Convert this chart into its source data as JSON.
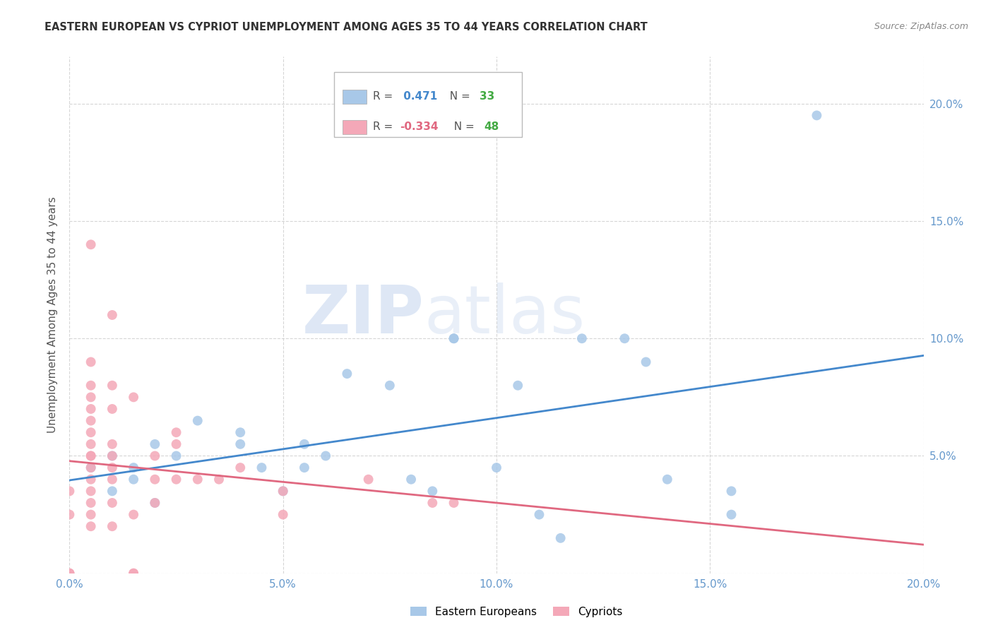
{
  "title": "EASTERN EUROPEAN VS CYPRIOT UNEMPLOYMENT AMONG AGES 35 TO 44 YEARS CORRELATION CHART",
  "source": "Source: ZipAtlas.com",
  "ylabel": "Unemployment Among Ages 35 to 44 years",
  "xlim": [
    0,
    0.2
  ],
  "ylim": [
    0,
    0.22
  ],
  "xticks": [
    0.0,
    0.05,
    0.1,
    0.15,
    0.2
  ],
  "yticks": [
    0.0,
    0.05,
    0.1,
    0.15,
    0.2
  ],
  "xticklabels": [
    "0.0%",
    "5.0%",
    "10.0%",
    "15.0%",
    "20.0%"
  ],
  "yticklabels_right": [
    "",
    "5.0%",
    "10.0%",
    "15.0%",
    "20.0%"
  ],
  "eastern_color": "#a8c8e8",
  "cypriot_color": "#f4a8b8",
  "trendline_eastern_color": "#4488cc",
  "trendline_cypriot_color": "#e06880",
  "R_eastern": 0.471,
  "N_eastern": 33,
  "R_cypriot": -0.334,
  "N_cypriot": 48,
  "eastern_x": [
    0.005,
    0.01,
    0.01,
    0.015,
    0.015,
    0.02,
    0.02,
    0.025,
    0.03,
    0.04,
    0.04,
    0.045,
    0.05,
    0.055,
    0.055,
    0.06,
    0.065,
    0.075,
    0.08,
    0.085,
    0.09,
    0.09,
    0.1,
    0.105,
    0.11,
    0.115,
    0.13,
    0.135,
    0.14,
    0.155,
    0.175,
    0.155,
    0.12
  ],
  "eastern_y": [
    0.045,
    0.05,
    0.035,
    0.045,
    0.04,
    0.055,
    0.03,
    0.05,
    0.065,
    0.06,
    0.055,
    0.045,
    0.035,
    0.045,
    0.055,
    0.05,
    0.085,
    0.08,
    0.04,
    0.035,
    0.1,
    0.1,
    0.045,
    0.08,
    0.025,
    0.015,
    0.1,
    0.09,
    0.04,
    0.035,
    0.195,
    0.025,
    0.1
  ],
  "cypriot_x": [
    0.0,
    0.0,
    0.0,
    0.0,
    0.0,
    0.005,
    0.005,
    0.005,
    0.005,
    0.005,
    0.005,
    0.005,
    0.005,
    0.005,
    0.005,
    0.005,
    0.005,
    0.005,
    0.005,
    0.005,
    0.005,
    0.01,
    0.01,
    0.01,
    0.01,
    0.01,
    0.01,
    0.01,
    0.01,
    0.01,
    0.015,
    0.015,
    0.015,
    0.015,
    0.02,
    0.02,
    0.02,
    0.025,
    0.025,
    0.025,
    0.03,
    0.035,
    0.04,
    0.05,
    0.05,
    0.07,
    0.085,
    0.09
  ],
  "cypriot_y": [
    0.0,
    0.0,
    0.0,
    0.025,
    0.035,
    0.02,
    0.025,
    0.03,
    0.035,
    0.04,
    0.045,
    0.05,
    0.05,
    0.055,
    0.06,
    0.065,
    0.07,
    0.075,
    0.08,
    0.09,
    0.14,
    0.02,
    0.03,
    0.04,
    0.045,
    0.05,
    0.055,
    0.07,
    0.08,
    0.11,
    0.0,
    0.0,
    0.025,
    0.075,
    0.03,
    0.04,
    0.05,
    0.04,
    0.055,
    0.06,
    0.04,
    0.04,
    0.045,
    0.035,
    0.025,
    0.04,
    0.03,
    0.03
  ],
  "watermark_zip": "ZIP",
  "watermark_atlas": "atlas",
  "background_color": "#ffffff",
  "grid_color": "#cccccc",
  "tick_color": "#6699cc",
  "title_color": "#333333",
  "ylabel_color": "#555555",
  "legend_r_color_eastern": "#4488cc",
  "legend_n_color_eastern": "#44aa44",
  "legend_r_color_cypriot": "#e06880",
  "legend_n_color_cypriot": "#44aa44"
}
